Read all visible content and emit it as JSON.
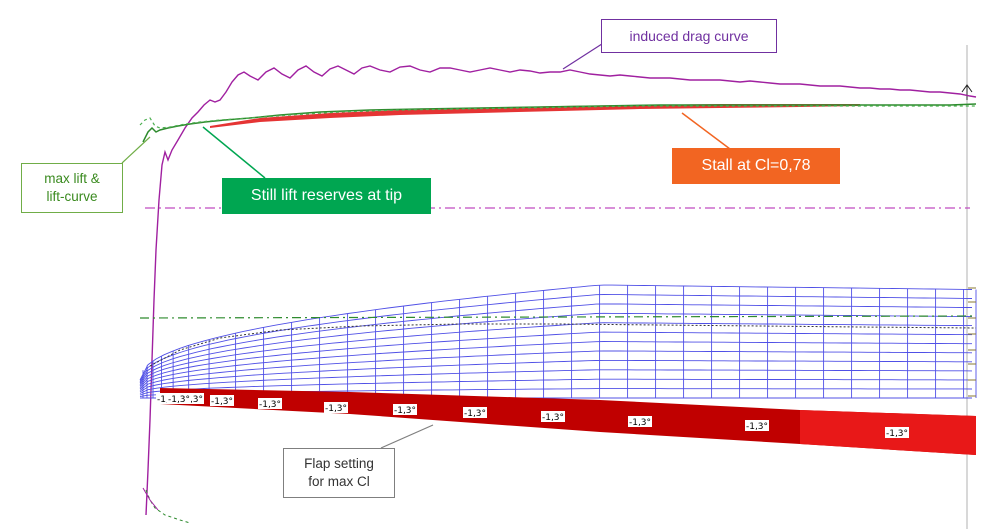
{
  "callouts": {
    "induced_drag": "induced drag curve",
    "stall": "Stall at Cl=0,78",
    "lift_reserves": "Still lift reserves at tip",
    "max_lift": "max lift &\nlift-curve",
    "flap_setting": "Flap setting\nfor max Cl"
  },
  "flap_labels": [
    "-1,3°",
    "-1,3°",
    "-1,3°",
    "-1,3°",
    "-1,3°",
    "-1,3°",
    "-1,3°",
    "-1,3°",
    "-1,3°",
    "-1,3°",
    "-1,3°",
    "-1,3°"
  ],
  "colors": {
    "induced_drag": "#a020a0",
    "lift_curve": "#2e8b2e",
    "stall_fill": "#e01010",
    "mesh": "#5050e6",
    "flap_fill": "#c00000",
    "flap_label_bg": "#ffffff",
    "callout_drag_border": "#7030a0",
    "callout_stall_bg": "#f26522",
    "callout_reserve_bg": "#00a651",
    "callout_maxlift_border": "#70ad47",
    "callout_flap_border": "#7f7f7f"
  },
  "icons": [
    "arrow-up-icon"
  ]
}
